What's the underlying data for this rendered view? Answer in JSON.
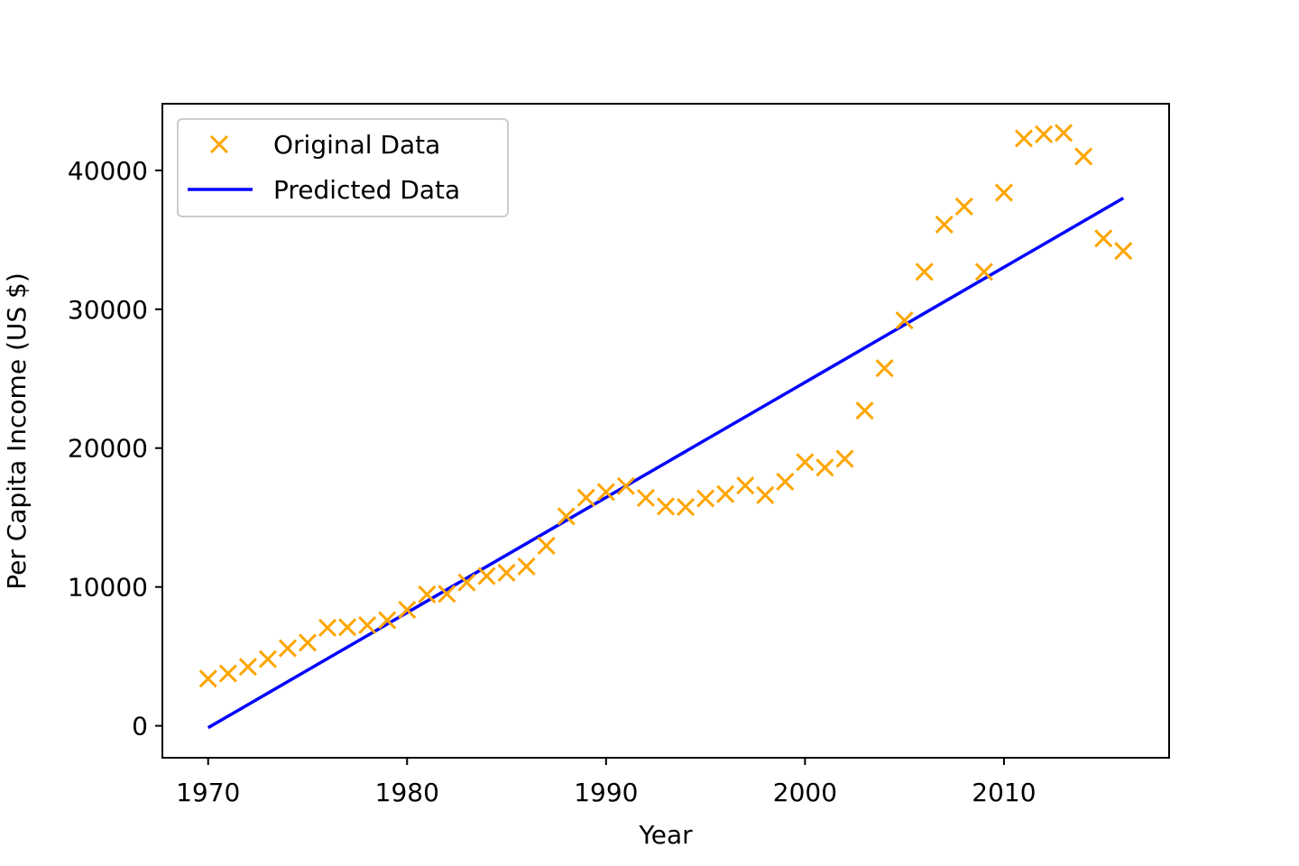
{
  "chart_data": {
    "type": "scatter",
    "title": "",
    "xlabel": "Year",
    "ylabel": "Per Capita Income (US $)",
    "xlim": [
      1967.7,
      2018.3
    ],
    "ylim": [
      -2300,
      44800
    ],
    "xticks": [
      1970,
      1980,
      1990,
      2000,
      2010
    ],
    "yticks": [
      0,
      10000,
      20000,
      30000,
      40000
    ],
    "grid": false,
    "legend_position": "top-left",
    "colors": {
      "original": "#FFA500",
      "predicted": "#0000FF"
    },
    "series": [
      {
        "name": "Original Data",
        "kind": "scatter",
        "marker": "x",
        "x": [
          1970,
          1971,
          1972,
          1973,
          1974,
          1975,
          1976,
          1977,
          1978,
          1979,
          1980,
          1981,
          1982,
          1983,
          1984,
          1985,
          1986,
          1987,
          1988,
          1989,
          1990,
          1991,
          1992,
          1993,
          1994,
          1995,
          1996,
          1997,
          1998,
          1999,
          2000,
          2001,
          2002,
          2003,
          2004,
          2005,
          2006,
          2007,
          2008,
          2009,
          2010,
          2011,
          2012,
          2013,
          2014,
          2015,
          2016
        ],
        "y": [
          3400,
          3770,
          4250,
          4800,
          5580,
          5990,
          7060,
          7100,
          7250,
          7600,
          8360,
          9460,
          9500,
          10320,
          10790,
          11020,
          11480,
          12970,
          15080,
          16430,
          16840,
          17270,
          16410,
          15800,
          15760,
          16370,
          16690,
          17310,
          16620,
          17580,
          18990,
          18600,
          19230,
          22700,
          25750,
          29200,
          32700,
          36100,
          37400,
          32700,
          38400,
          42300,
          42600,
          42700,
          41000,
          35100,
          34200
        ]
      },
      {
        "name": "Predicted Data",
        "kind": "line",
        "x": [
          1970,
          2016
        ],
        "y": [
          -135,
          38000
        ]
      }
    ]
  }
}
